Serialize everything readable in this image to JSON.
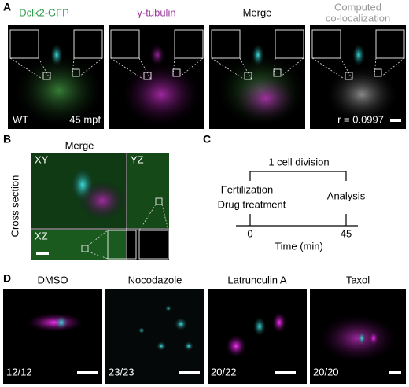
{
  "panel_a": {
    "label": "A",
    "channels": [
      "Dclk2-GFP",
      "γ-tubulin",
      "Merge"
    ],
    "colocalization_title": [
      "Computed",
      "co-localization"
    ],
    "genotype": "WT",
    "timepoint": "45 mpf",
    "correlation": "r = 0.0997"
  },
  "panel_b": {
    "label": "B",
    "title": "Merge",
    "views": [
      "XY",
      "YZ",
      "XZ"
    ],
    "side_label": "Cross section"
  },
  "panel_c": {
    "label": "C",
    "bracket_label": "1 cell division",
    "events_start": [
      "Fertilization",
      "Drug treatment"
    ],
    "event_end": "Analysis",
    "ticks": [
      "0",
      "45"
    ],
    "axis_label": "Time (min)"
  },
  "panel_d": {
    "label": "D",
    "conditions": [
      {
        "name": "DMSO",
        "count": "12/12"
      },
      {
        "name": "Nocodazole",
        "count": "23/23"
      },
      {
        "name": "Latrunculin A",
        "count": "20/22"
      },
      {
        "name": "Taxol",
        "count": "20/20"
      }
    ]
  }
}
